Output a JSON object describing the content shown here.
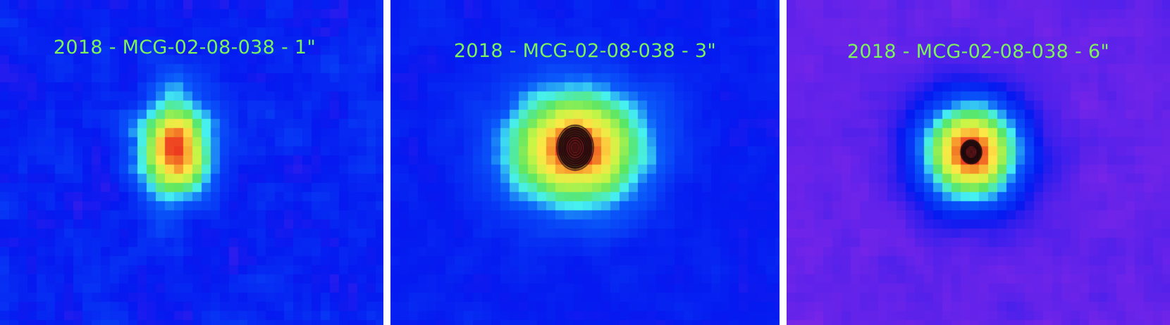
{
  "colors": {
    "label": "#7CF25C",
    "separator": "#ffffff",
    "contour": "#1a0a10"
  },
  "panels": [
    {
      "title": "2018 - MCG-02-08-038 - 1\"",
      "background": "blue",
      "has_contours": false
    },
    {
      "title": "2018 - MCG-02-08-038 - 3\"",
      "background": "blue",
      "has_contours": true
    },
    {
      "title": "2018 - MCG-02-08-038 - 6\"",
      "background": "violet",
      "has_contours": true
    }
  ]
}
